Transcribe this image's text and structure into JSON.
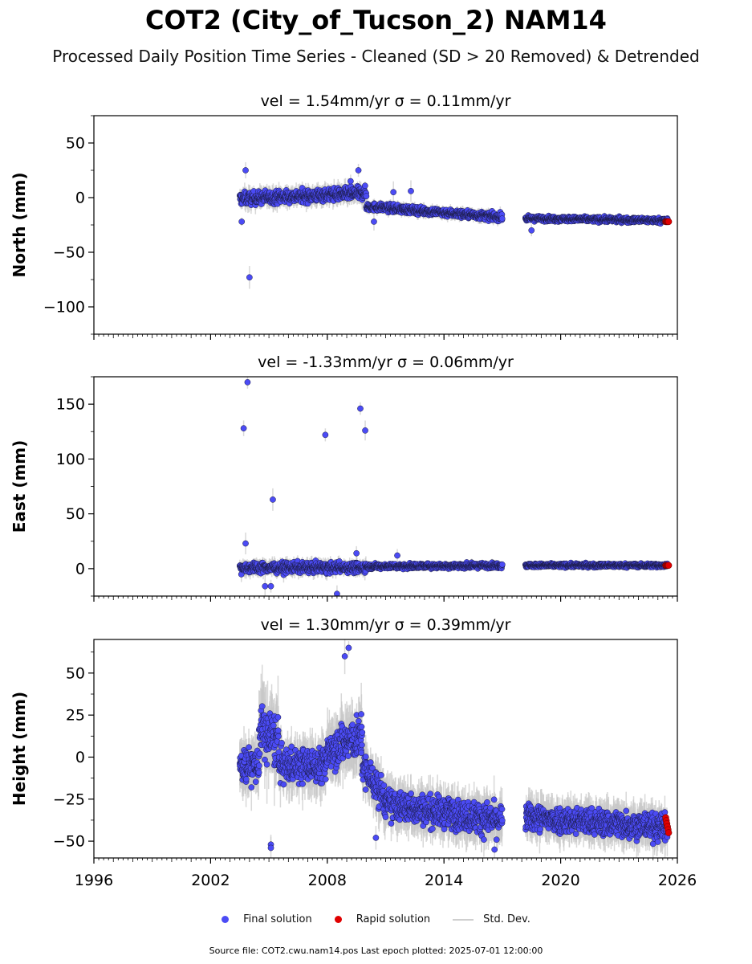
{
  "title": "COT2 (City_of_Tucson_2) NAM14",
  "subtitle": "Processed Daily Position Time Series - Cleaned (SD > 20 Removed) & Detrended",
  "legend": {
    "final_label": "Final solution",
    "rapid_label": "Rapid solution",
    "std_label": "Std. Dev."
  },
  "footer": "Source file: COT2.cwu.nam14.pos  Last epoch plotted: 2025-07-01 12:00:00",
  "colors": {
    "final": "#4b4bf5",
    "rapid": "#e00000",
    "std": "#c8c8c8",
    "marker_edge": "#1a1a40"
  },
  "chart_data": [
    {
      "type": "scatter",
      "title": "vel = 1.54mm/yr   σ = 0.11mm/yr",
      "ylabel": "North (mm)",
      "xlim": [
        1996,
        2026
      ],
      "ylim": [
        -125,
        75
      ],
      "yticks": [
        -100,
        -50,
        0,
        50
      ],
      "xticks": [
        1996,
        2002,
        2008,
        2014,
        2020,
        2026
      ],
      "show_xticklabels": false,
      "series": [
        {
          "name": "Final solution",
          "segments": [
            {
              "x": [
                2003.5,
                2010.0
              ],
              "trend": [
                -1,
                4
              ],
              "spread": 5
            },
            {
              "x": [
                2010.0,
                2017.0
              ],
              "trend": [
                -8,
                -18
              ],
              "spread": 3
            },
            {
              "x": [
                2018.2,
                2025.5
              ],
              "trend": [
                -19,
                -21
              ],
              "spread": 2
            }
          ],
          "outliers": [
            [
              2003.8,
              25
            ],
            [
              2004.0,
              -73
            ],
            [
              2003.6,
              -22
            ],
            [
              2009.6,
              25
            ],
            [
              2009.2,
              15
            ],
            [
              2010.4,
              -22
            ],
            [
              2011.4,
              5
            ],
            [
              2012.3,
              6
            ],
            [
              2018.5,
              -30
            ]
          ]
        },
        {
          "name": "Rapid solution",
          "x": [
            2025.4,
            2025.55
          ],
          "y": [
            -22,
            -22
          ]
        }
      ]
    },
    {
      "type": "scatter",
      "title": "vel = -1.33mm/yr   σ = 0.06mm/yr",
      "ylabel": "East (mm)",
      "xlim": [
        1996,
        2026
      ],
      "ylim": [
        -25,
        175
      ],
      "yticks": [
        0,
        50,
        100,
        150
      ],
      "xticks": [
        1996,
        2002,
        2008,
        2014,
        2020,
        2026
      ],
      "show_xticklabels": false,
      "series": [
        {
          "name": "Final solution",
          "segments": [
            {
              "x": [
                2003.5,
                2010.0
              ],
              "trend": [
                1,
                1
              ],
              "spread": 4
            },
            {
              "x": [
                2010.0,
                2017.0
              ],
              "trend": [
                2,
                3
              ],
              "spread": 2
            },
            {
              "x": [
                2018.2,
                2025.5
              ],
              "trend": [
                3,
                3
              ],
              "spread": 1.5
            }
          ],
          "outliers": [
            [
              2003.7,
              128
            ],
            [
              2003.9,
              170
            ],
            [
              2003.8,
              23
            ],
            [
              2005.2,
              63
            ],
            [
              2007.9,
              122
            ],
            [
              2009.7,
              146
            ],
            [
              2009.95,
              126
            ],
            [
              2008.5,
              -23
            ],
            [
              2009.5,
              14
            ],
            [
              2004.8,
              -16
            ],
            [
              2005.1,
              -16
            ],
            [
              2011.6,
              12
            ]
          ]
        },
        {
          "name": "Rapid solution",
          "x": [
            2025.4,
            2025.55
          ],
          "y": [
            3,
            3
          ]
        }
      ]
    },
    {
      "type": "scatter",
      "title": "vel = 1.30mm/yr   σ = 0.39mm/yr",
      "ylabel": "Height (mm)",
      "xlim": [
        1996,
        2026
      ],
      "ylim": [
        -60,
        70
      ],
      "yticks": [
        -50,
        -25,
        0,
        25,
        50
      ],
      "xticks": [
        1996,
        2002,
        2008,
        2014,
        2020,
        2026
      ],
      "xticklabels": [
        "1996",
        "2002",
        "2008",
        "2014",
        "2020",
        "2026"
      ],
      "show_xticklabels": true,
      "series": [
        {
          "name": "Final solution",
          "segments": [
            {
              "x": [
                2003.5,
                2004.5
              ],
              "trend": [
                -5,
                -5
              ],
              "spread": 9
            },
            {
              "x": [
                2004.5,
                2005.5
              ],
              "trend": [
                15,
                10
              ],
              "spread": 14
            },
            {
              "x": [
                2005.5,
                2008.0
              ],
              "trend": [
                -5,
                -5
              ],
              "spread": 9
            },
            {
              "x": [
                2008.0,
                2009.8
              ],
              "trend": [
                5,
                12
              ],
              "spread": 11
            },
            {
              "x": [
                2009.8,
                2011.0
              ],
              "trend": [
                -5,
                -25
              ],
              "spread": 9
            },
            {
              "x": [
                2011.0,
                2017.0
              ],
              "trend": [
                -28,
                -38
              ],
              "spread": 8
            },
            {
              "x": [
                2018.2,
                2023.5
              ],
              "trend": [
                -36,
                -40
              ],
              "spread": 7
            },
            {
              "x": [
                2023.5,
                2025.5
              ],
              "trend": [
                -40,
                -42
              ],
              "spread": 7
            }
          ],
          "outliers": [
            [
              2008.9,
              60
            ],
            [
              2009.1,
              65
            ],
            [
              2005.1,
              -52
            ],
            [
              2005.1,
              -54
            ],
            [
              2010.5,
              -48
            ],
            [
              2016.6,
              -55
            ]
          ]
        },
        {
          "name": "Rapid solution",
          "x": [
            2025.4,
            2025.55
          ],
          "y": [
            -36,
            -45
          ]
        }
      ]
    }
  ]
}
